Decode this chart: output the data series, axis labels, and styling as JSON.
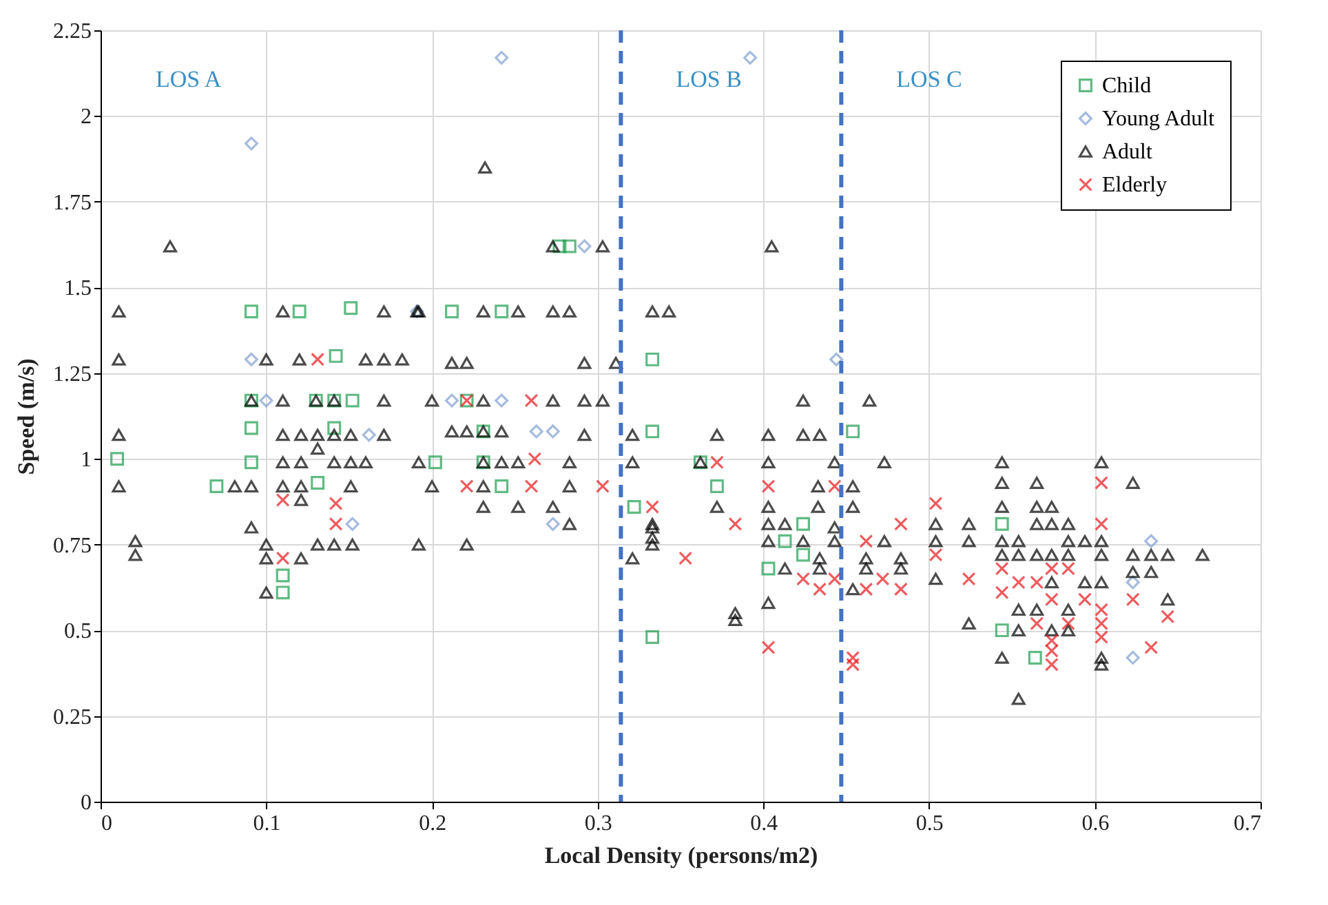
{
  "chart_data": {
    "type": "scatter",
    "xlabel": "Local Density (persons/m2)",
    "ylabel": "Speed (m/s)",
    "xlim": [
      0,
      0.7
    ],
    "xticks": [
      0,
      0.1,
      0.2,
      0.3,
      0.4,
      0.5,
      0.6,
      0.7
    ],
    "ylim": [
      0,
      2.25
    ],
    "yticks": [
      0,
      0.25,
      0.5,
      0.75,
      1,
      1.25,
      1.5,
      1.75,
      2,
      2.25
    ],
    "grid": true,
    "legend": "top right",
    "ref_lines": [
      {
        "axis": "x",
        "value": 0.314,
        "color": "#4472c4",
        "line_style": "dashed"
      },
      {
        "axis": "x",
        "value": 0.447,
        "color": "#4472c4",
        "line_style": "dashed"
      }
    ],
    "annotations": [
      "LOS A",
      "LOS B",
      "LOS C"
    ],
    "series": [
      {
        "name": "Child",
        "color": "#1e9e50",
        "marker": "square",
        "x": [
          0.01,
          0.07,
          0.091,
          0.12,
          0.151,
          0.091,
          0.13,
          0.141,
          0.152,
          0.091,
          0.141,
          0.091,
          0.131,
          0.11,
          0.11,
          0.277,
          0.283,
          0.212,
          0.242,
          0.333,
          0.221,
          0.231,
          0.333,
          0.202,
          0.231,
          0.242,
          0.322,
          0.333,
          0.362,
          0.372,
          0.454,
          0.424,
          0.413,
          0.424,
          0.403,
          0.544,
          0.544,
          0.564,
          0.142
        ],
        "values": [
          1.0,
          0.92,
          1.43,
          1.43,
          1.44,
          1.17,
          1.17,
          1.17,
          1.17,
          1.09,
          1.09,
          0.99,
          0.93,
          0.66,
          0.61,
          1.62,
          1.62,
          1.43,
          1.43,
          1.29,
          1.17,
          1.08,
          1.08,
          0.99,
          0.99,
          0.92,
          0.86,
          0.48,
          0.99,
          0.92,
          1.08,
          0.81,
          0.76,
          0.72,
          0.68,
          0.81,
          0.5,
          0.42,
          1.3
        ]
      },
      {
        "name": "Young Adult",
        "color": "#7f9fcf",
        "marker": "diamond",
        "x": [
          0.091,
          0.242,
          0.392,
          0.292,
          0.091,
          0.1,
          0.162,
          0.152,
          0.212,
          0.242,
          0.263,
          0.273,
          0.273,
          0.191,
          0.634,
          0.623,
          0.623,
          0.444
        ],
        "values": [
          1.92,
          2.17,
          2.17,
          1.62,
          1.29,
          1.17,
          1.07,
          0.81,
          1.17,
          1.17,
          1.08,
          1.08,
          0.81,
          1.43,
          0.76,
          0.64,
          0.42,
          1.29
        ]
      },
      {
        "name": "Adult",
        "color": "#000000",
        "marker": "triangle",
        "x": [
          0.042,
          0.011,
          0.11,
          0.171,
          0.191,
          0.011,
          0.1,
          0.12,
          0.16,
          0.171,
          0.182,
          0.091,
          0.11,
          0.13,
          0.141,
          0.171,
          0.011,
          0.11,
          0.121,
          0.131,
          0.141,
          0.151,
          0.171,
          0.131,
          0.11,
          0.121,
          0.141,
          0.151,
          0.16,
          0.192,
          0.011,
          0.081,
          0.091,
          0.11,
          0.121,
          0.151,
          0.121,
          0.091,
          0.021,
          0.021,
          0.1,
          0.131,
          0.141,
          0.152,
          0.192,
          0.1,
          0.121,
          0.1,
          0.232,
          0.273,
          0.303,
          0.192,
          0.231,
          0.252,
          0.273,
          0.283,
          0.333,
          0.343,
          0.212,
          0.221,
          0.292,
          0.311,
          0.2,
          0.231,
          0.273,
          0.292,
          0.303,
          0.212,
          0.221,
          0.231,
          0.242,
          0.292,
          0.321,
          0.231,
          0.242,
          0.252,
          0.283,
          0.321,
          0.2,
          0.231,
          0.283,
          0.231,
          0.252,
          0.273,
          0.283,
          0.333,
          0.221,
          0.333,
          0.321,
          0.405,
          0.424,
          0.464,
          0.372,
          0.403,
          0.424,
          0.434,
          0.362,
          0.403,
          0.443,
          0.473,
          0.433,
          0.454,
          0.333,
          0.333,
          0.372,
          0.403,
          0.433,
          0.454,
          0.403,
          0.413,
          0.443,
          0.403,
          0.424,
          0.443,
          0.473,
          0.434,
          0.462,
          0.483,
          0.413,
          0.434,
          0.462,
          0.483,
          0.454,
          0.403,
          0.383,
          0.383,
          0.544,
          0.604,
          0.544,
          0.565,
          0.623,
          0.544,
          0.565,
          0.574,
          0.504,
          0.524,
          0.565,
          0.574,
          0.584,
          0.504,
          0.524,
          0.544,
          0.554,
          0.584,
          0.594,
          0.604,
          0.544,
          0.554,
          0.565,
          0.574,
          0.584,
          0.604,
          0.623,
          0.634,
          0.644,
          0.665,
          0.504,
          0.574,
          0.594,
          0.604,
          0.623,
          0.634,
          0.644,
          0.554,
          0.565,
          0.584,
          0.524,
          0.554,
          0.574,
          0.584,
          0.544,
          0.604,
          0.604,
          0.554
        ],
        "values": [
          1.62,
          1.43,
          1.43,
          1.43,
          1.43,
          1.29,
          1.29,
          1.29,
          1.29,
          1.29,
          1.29,
          1.17,
          1.17,
          1.17,
          1.17,
          1.17,
          1.07,
          1.07,
          1.07,
          1.07,
          1.07,
          1.07,
          1.07,
          1.03,
          0.99,
          0.99,
          0.99,
          0.99,
          0.99,
          0.99,
          0.92,
          0.92,
          0.92,
          0.92,
          0.92,
          0.92,
          0.88,
          0.8,
          0.76,
          0.72,
          0.75,
          0.75,
          0.75,
          0.75,
          0.75,
          0.71,
          0.71,
          0.61,
          1.85,
          1.62,
          1.62,
          1.43,
          1.43,
          1.43,
          1.43,
          1.43,
          1.43,
          1.43,
          1.28,
          1.28,
          1.28,
          1.28,
          1.17,
          1.17,
          1.17,
          1.17,
          1.17,
          1.08,
          1.08,
          1.08,
          1.08,
          1.07,
          1.07,
          0.99,
          0.99,
          0.99,
          0.99,
          0.99,
          0.92,
          0.92,
          0.92,
          0.86,
          0.86,
          0.86,
          0.81,
          0.8,
          0.75,
          0.75,
          0.71,
          1.62,
          1.17,
          1.17,
          1.07,
          1.07,
          1.07,
          1.07,
          0.99,
          0.99,
          0.99,
          0.99,
          0.92,
          0.92,
          0.81,
          0.77,
          0.86,
          0.86,
          0.86,
          0.86,
          0.81,
          0.81,
          0.8,
          0.76,
          0.76,
          0.76,
          0.76,
          0.71,
          0.71,
          0.71,
          0.68,
          0.68,
          0.68,
          0.68,
          0.62,
          0.58,
          0.55,
          0.53,
          0.99,
          0.99,
          0.93,
          0.93,
          0.93,
          0.86,
          0.86,
          0.86,
          0.81,
          0.81,
          0.81,
          0.81,
          0.81,
          0.76,
          0.76,
          0.76,
          0.76,
          0.76,
          0.76,
          0.76,
          0.72,
          0.72,
          0.72,
          0.72,
          0.72,
          0.72,
          0.72,
          0.72,
          0.72,
          0.72,
          0.65,
          0.64,
          0.64,
          0.64,
          0.67,
          0.67,
          0.59,
          0.56,
          0.56,
          0.56,
          0.52,
          0.5,
          0.5,
          0.5,
          0.42,
          0.42,
          0.4,
          0.3
        ]
      },
      {
        "name": "Elderly",
        "color": "#e8161b",
        "marker": "cross",
        "x": [
          0.131,
          0.11,
          0.142,
          0.142,
          0.11,
          0.221,
          0.26,
          0.262,
          0.221,
          0.26,
          0.303,
          0.333,
          0.372,
          0.403,
          0.443,
          0.383,
          0.483,
          0.462,
          0.353,
          0.424,
          0.443,
          0.472,
          0.434,
          0.462,
          0.483,
          0.403,
          0.454,
          0.454,
          0.504,
          0.504,
          0.524,
          0.544,
          0.574,
          0.584,
          0.604,
          0.604,
          0.544,
          0.554,
          0.565,
          0.574,
          0.594,
          0.604,
          0.623,
          0.644,
          0.565,
          0.584,
          0.604,
          0.604,
          0.634,
          0.574,
          0.574,
          0.574
        ],
        "values": [
          1.29,
          0.88,
          0.87,
          0.81,
          0.71,
          1.17,
          1.17,
          1.0,
          0.92,
          0.92,
          0.92,
          0.86,
          0.99,
          0.92,
          0.92,
          0.81,
          0.81,
          0.76,
          0.71,
          0.65,
          0.65,
          0.65,
          0.62,
          0.62,
          0.62,
          0.45,
          0.42,
          0.4,
          0.87,
          0.72,
          0.65,
          0.68,
          0.68,
          0.68,
          0.93,
          0.81,
          0.61,
          0.64,
          0.64,
          0.59,
          0.59,
          0.56,
          0.59,
          0.54,
          0.52,
          0.52,
          0.52,
          0.48,
          0.45,
          0.47,
          0.44,
          0.4
        ]
      }
    ]
  }
}
